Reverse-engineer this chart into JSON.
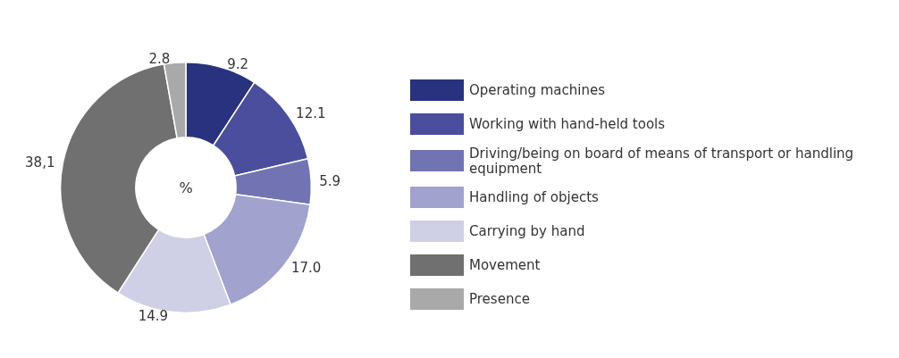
{
  "chart_data": {
    "type": "donut",
    "categories": [
      "Operating machines",
      "Working with hand-held tools",
      "Driving/being on board of means of transport or handling equipment",
      "Handling of objects",
      "Carrying by hand",
      "Movement",
      "Presence"
    ],
    "values": [
      9.2,
      12.1,
      5.9,
      17.0,
      14.9,
      38.1,
      2.8
    ],
    "value_labels": [
      "9.2",
      "12.1",
      "5.9",
      "17.0",
      "14.9",
      "38,1",
      "2.8"
    ],
    "colors": [
      "#28327e",
      "#4a4e9c",
      "#7273b3",
      "#a2a2cf",
      "#cfcfe6",
      "#707070",
      "#a9a9a9"
    ],
    "annotations": [
      "%"
    ],
    "legend": "right"
  }
}
